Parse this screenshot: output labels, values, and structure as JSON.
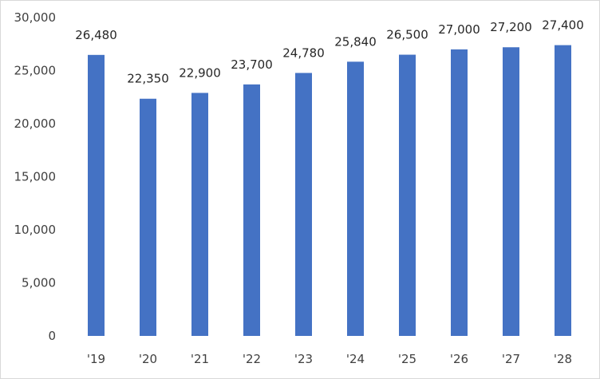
{
  "chart_data": {
    "type": "bar",
    "categories": [
      "'19",
      "'20",
      "'21",
      "'22",
      "'23",
      "'24",
      "'25",
      "'26",
      "'27",
      "'28"
    ],
    "values": [
      26480,
      22350,
      22900,
      23700,
      24780,
      25840,
      26500,
      27000,
      27200,
      27400
    ],
    "data_labels": [
      "26,480",
      "22,350",
      "22,900",
      "23,700",
      "24,780",
      "25,840",
      "26,500",
      "27,000",
      "27,200",
      "27,400"
    ],
    "ylim": [
      0,
      30000
    ],
    "yticks": [
      0,
      5000,
      10000,
      15000,
      20000,
      25000,
      30000
    ],
    "ytick_labels": [
      "0",
      "5,000",
      "10,000",
      "15,000",
      "20,000",
      "25,000",
      "30,000"
    ],
    "grid": false,
    "legend": "none",
    "bar_color": "#4472C4",
    "title": "",
    "xlabel": "",
    "ylabel": ""
  }
}
